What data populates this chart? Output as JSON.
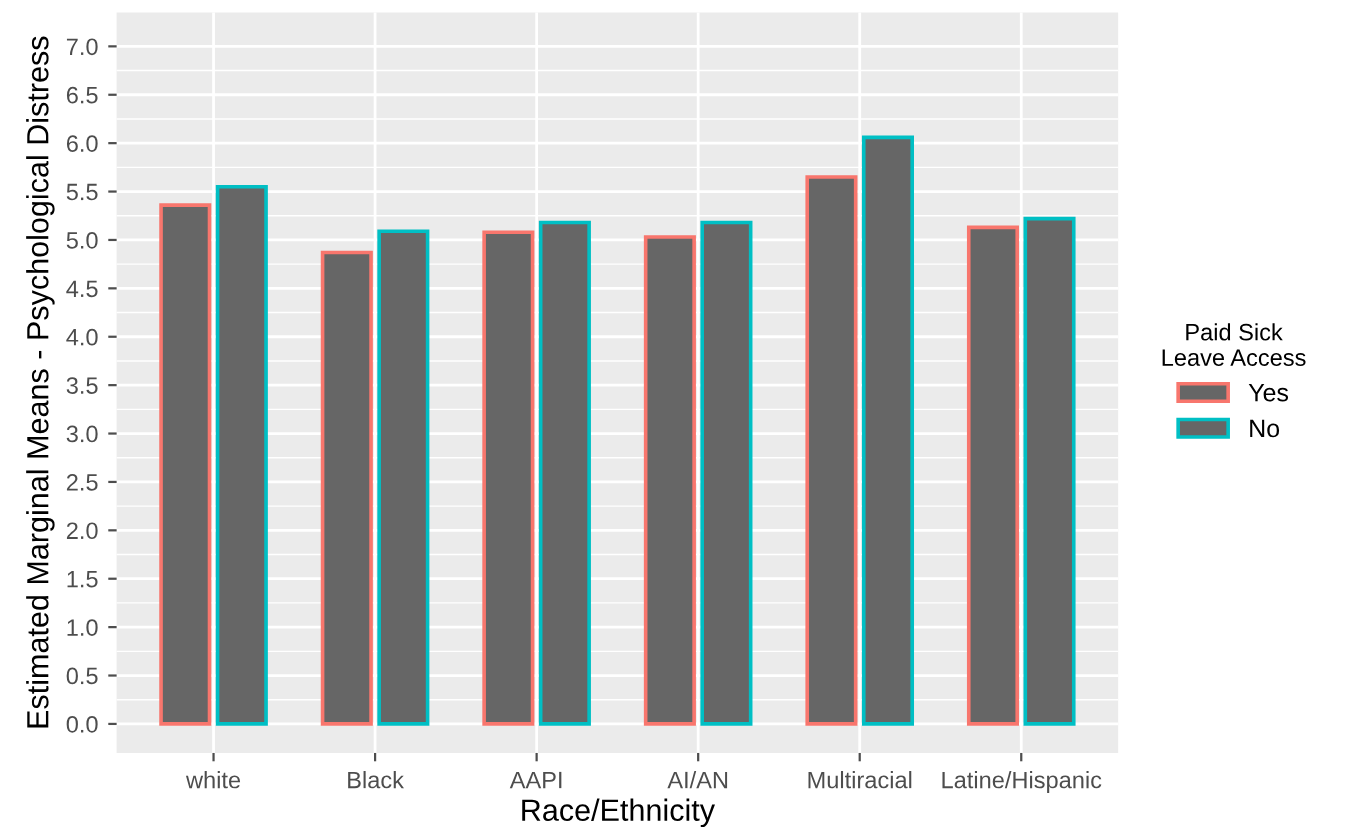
{
  "chart_data": {
    "type": "bar",
    "xlabel": "Race/Ethnicity",
    "ylabel": "Estimated Marginal Means - Psychological Distress",
    "legend_title": "Paid Sick\nLeave Access",
    "categories": [
      "white",
      "Black",
      "AAPI",
      "AI/AN",
      "Multiracial",
      "Latine/Hispanic"
    ],
    "series": [
      {
        "name": "Yes",
        "color": "#f8766d",
        "values": [
          5.36,
          4.87,
          5.08,
          5.03,
          5.65,
          5.13
        ]
      },
      {
        "name": "No",
        "color": "#00bfc4",
        "values": [
          5.55,
          5.09,
          5.18,
          5.18,
          6.06,
          5.22
        ]
      }
    ],
    "ylim": [
      -0.3,
      7.35
    ],
    "yticks": [
      {
        "value": 0,
        "label": "0.0"
      },
      {
        "value": 0.5,
        "label": "0.5"
      },
      {
        "value": 1,
        "label": "1.0"
      },
      {
        "value": 1.5,
        "label": "1.5"
      },
      {
        "value": 2,
        "label": "2.0"
      },
      {
        "value": 2.5,
        "label": "2.5"
      },
      {
        "value": 3,
        "label": "3.0"
      },
      {
        "value": 3.5,
        "label": "3.5"
      },
      {
        "value": 4,
        "label": "4.0"
      },
      {
        "value": 4.5,
        "label": "4.5"
      },
      {
        "value": 5,
        "label": "5.0"
      },
      {
        "value": 5.5,
        "label": "5.5"
      },
      {
        "value": 6,
        "label": "6.0"
      },
      {
        "value": 6.5,
        "label": "6.5"
      },
      {
        "value": 7,
        "label": "7.0"
      }
    ],
    "grid": true,
    "legend": "right"
  }
}
